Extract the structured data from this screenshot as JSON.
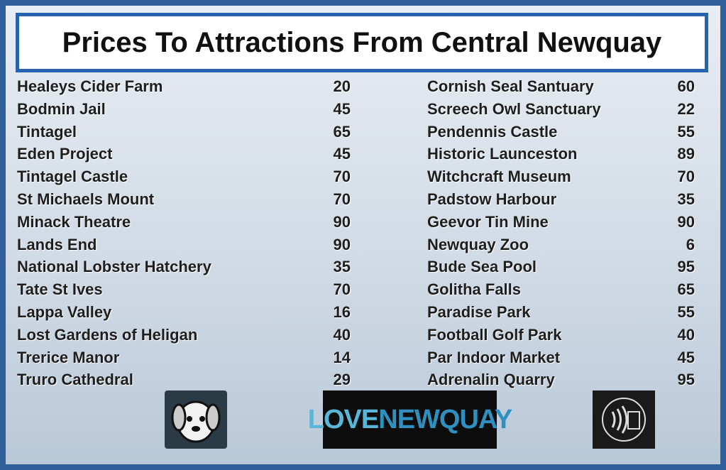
{
  "header": {
    "title": "Prices To Attractions From Central Newquay"
  },
  "table": {
    "columns": [
      [
        [
          "Healeys Cider Farm",
          20
        ],
        [
          "Bodmin Jail",
          45
        ],
        [
          "Tintagel",
          65
        ],
        [
          "Eden Project",
          45
        ],
        [
          "Tintagel Castle",
          70
        ],
        [
          "St Michaels Mount",
          70
        ],
        [
          "Minack Theatre",
          90
        ],
        [
          "Lands End",
          90
        ],
        [
          "National Lobster Hatchery",
          35
        ],
        [
          "Tate St Ives",
          70
        ],
        [
          "Lappa Valley",
          16
        ],
        [
          "Lost Gardens of Heligan",
          40
        ],
        [
          "Trerice Manor",
          14
        ],
        [
          "Truro Cathedral",
          29
        ]
      ],
      [
        [
          "Cornish Seal Santuary",
          60
        ],
        [
          "Screech Owl Sanctuary",
          22
        ],
        [
          "Pendennis Castle",
          55
        ],
        [
          "Historic Launceston",
          89
        ],
        [
          "Witchcraft Museum",
          70
        ],
        [
          "Padstow Harbour",
          35
        ],
        [
          "Geevor Tin Mine",
          90
        ],
        [
          "Newquay Zoo",
          6
        ],
        [
          "Bude Sea Pool",
          95
        ],
        [
          "Golitha Falls",
          65
        ],
        [
          "Paradise Park",
          55
        ],
        [
          "Football Golf Park",
          40
        ],
        [
          "Par Indoor Market",
          45
        ],
        [
          "Adrenalin Quarry",
          95
        ]
      ]
    ]
  },
  "logos": {
    "love": "LOVE",
    "newquay": "NEWQUAY"
  }
}
